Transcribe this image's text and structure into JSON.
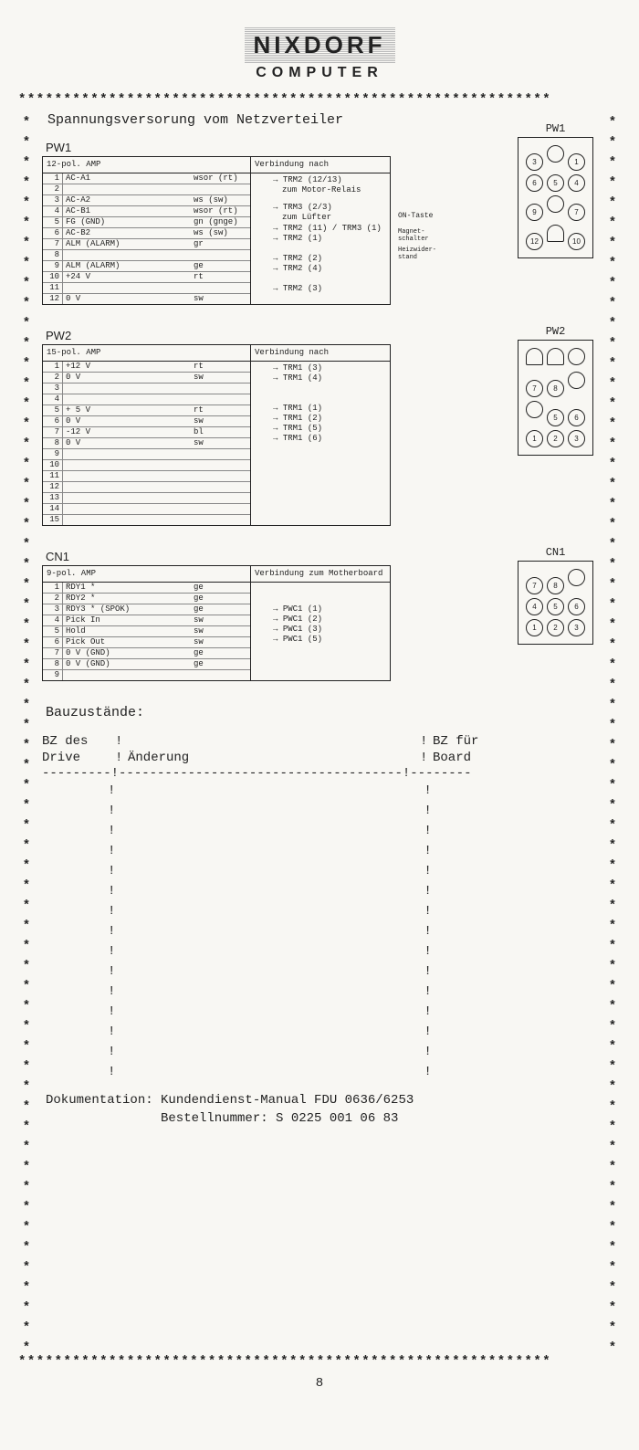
{
  "logo": {
    "name": "NIXDORF",
    "sub": "COMPUTER"
  },
  "title": "Spannungsversorung vom Netzverteiler",
  "pw1": {
    "label": "PW1",
    "header_left": "12-pol. AMP",
    "header_right": "Verbindung nach",
    "rows": [
      {
        "n": "1",
        "sig": "AC-A1",
        "col": "wsor (rt)"
      },
      {
        "n": "2",
        "sig": "",
        "col": ""
      },
      {
        "n": "3",
        "sig": "AC-A2",
        "col": "ws   (sw)"
      },
      {
        "n": "4",
        "sig": "AC-B1",
        "col": "wsor (rt)"
      },
      {
        "n": "5",
        "sig": "FG (GND)",
        "col": "gn (gnge)"
      },
      {
        "n": "6",
        "sig": "AC-B2",
        "col": "ws   (sw)"
      },
      {
        "n": "7",
        "sig": "ALM (ALARM)",
        "col": "gr"
      },
      {
        "n": "8",
        "sig": "",
        "col": ""
      },
      {
        "n": "9",
        "sig": "ALM (ALARM)",
        "col": "ge"
      },
      {
        "n": "10",
        "sig": "+24 V",
        "col": "rt"
      },
      {
        "n": "11",
        "sig": "",
        "col": ""
      },
      {
        "n": "12",
        "sig": "0 V",
        "col": "sw"
      }
    ],
    "dests": [
      "TRM2 (12/13)",
      "zum Motor-Relais",
      "TRM3 (2/3)",
      "zum Lüfter",
      "TRM2 (11) / TRM3 (1)",
      "TRM2 (1)",
      "TRM2 (2)",
      "TRM2 (4)",
      "TRM2 (3)"
    ],
    "side1": "ON-Taste",
    "side2": "Magnet-\nschalter",
    "side3": "Heizwider-\nstand",
    "pins": [
      "3",
      "",
      "1",
      "6",
      "5",
      "4",
      "9",
      "",
      "7",
      "12",
      "",
      "10"
    ],
    "flats": [
      false,
      false,
      false,
      false,
      false,
      false,
      false,
      false,
      false,
      false,
      true,
      false
    ]
  },
  "pw2": {
    "label": "PW2",
    "header_left": "15-pol. AMP",
    "header_right": "Verbindung nach",
    "rows": [
      {
        "n": "1",
        "sig": "+12 V",
        "col": "rt"
      },
      {
        "n": "2",
        "sig": "0 V",
        "col": "sw"
      },
      {
        "n": "3",
        "sig": "",
        "col": ""
      },
      {
        "n": "4",
        "sig": "",
        "col": ""
      },
      {
        "n": "5",
        "sig": "+ 5 V",
        "col": "rt"
      },
      {
        "n": "6",
        "sig": "0 V",
        "col": "sw"
      },
      {
        "n": "7",
        "sig": "-12 V",
        "col": "bl"
      },
      {
        "n": "8",
        "sig": "0 V",
        "col": "sw"
      },
      {
        "n": "9",
        "sig": "",
        "col": ""
      },
      {
        "n": "10",
        "sig": "",
        "col": ""
      },
      {
        "n": "11",
        "sig": "",
        "col": ""
      },
      {
        "n": "12",
        "sig": "",
        "col": ""
      },
      {
        "n": "13",
        "sig": "",
        "col": ""
      },
      {
        "n": "14",
        "sig": "",
        "col": ""
      },
      {
        "n": "15",
        "sig": "",
        "col": ""
      }
    ],
    "dests": [
      "TRM1 (3)",
      "TRM1 (4)",
      "TRM1 (1)",
      "TRM1 (2)",
      "TRM1 (5)",
      "TRM1 (6)"
    ],
    "pins": [
      "",
      "",
      "",
      "7",
      "8",
      "",
      "",
      "5",
      "6",
      "1",
      "2",
      "3"
    ],
    "flats": [
      true,
      true,
      false,
      false,
      false,
      false,
      false,
      false,
      false,
      false,
      false,
      false
    ]
  },
  "cn1": {
    "label": "CN1",
    "header_left": "9-pol. AMP",
    "header_right": "Verbindung zum Motherboard",
    "rows": [
      {
        "n": "1",
        "sig": "RDY1 *",
        "col": "ge"
      },
      {
        "n": "2",
        "sig": "RDY2 *",
        "col": "ge"
      },
      {
        "n": "3",
        "sig": "RDY3 * (SPOK)",
        "col": "ge"
      },
      {
        "n": "4",
        "sig": "Pick In",
        "col": "sw"
      },
      {
        "n": "5",
        "sig": "Hold",
        "col": "sw"
      },
      {
        "n": "6",
        "sig": "Pick Out",
        "col": "sw"
      },
      {
        "n": "7",
        "sig": "0 V (GND)",
        "col": "ge"
      },
      {
        "n": "8",
        "sig": "0 V (GND)",
        "col": "ge"
      },
      {
        "n": "9",
        "sig": "",
        "col": ""
      }
    ],
    "dests": [
      "PWC1 (1)",
      "PWC1 (2)",
      "PWC1 (3)",
      "PWC1 (5)"
    ],
    "pins": [
      "7",
      "8",
      "",
      "4",
      "5",
      "6",
      "1",
      "2",
      "3"
    ]
  },
  "bauz": {
    "title": "Bauzustände:",
    "h1a": "BZ des",
    "h1b": "Drive",
    "h2": "Änderung",
    "h3a": "BZ für",
    "h3b": "Board"
  },
  "footer": {
    "l1": "Dokumentation: Kundendienst-Manual FDU 0636/6253",
    "l2": "Bestellnummer: S 0225 001 06 83"
  },
  "pagenum": "8"
}
